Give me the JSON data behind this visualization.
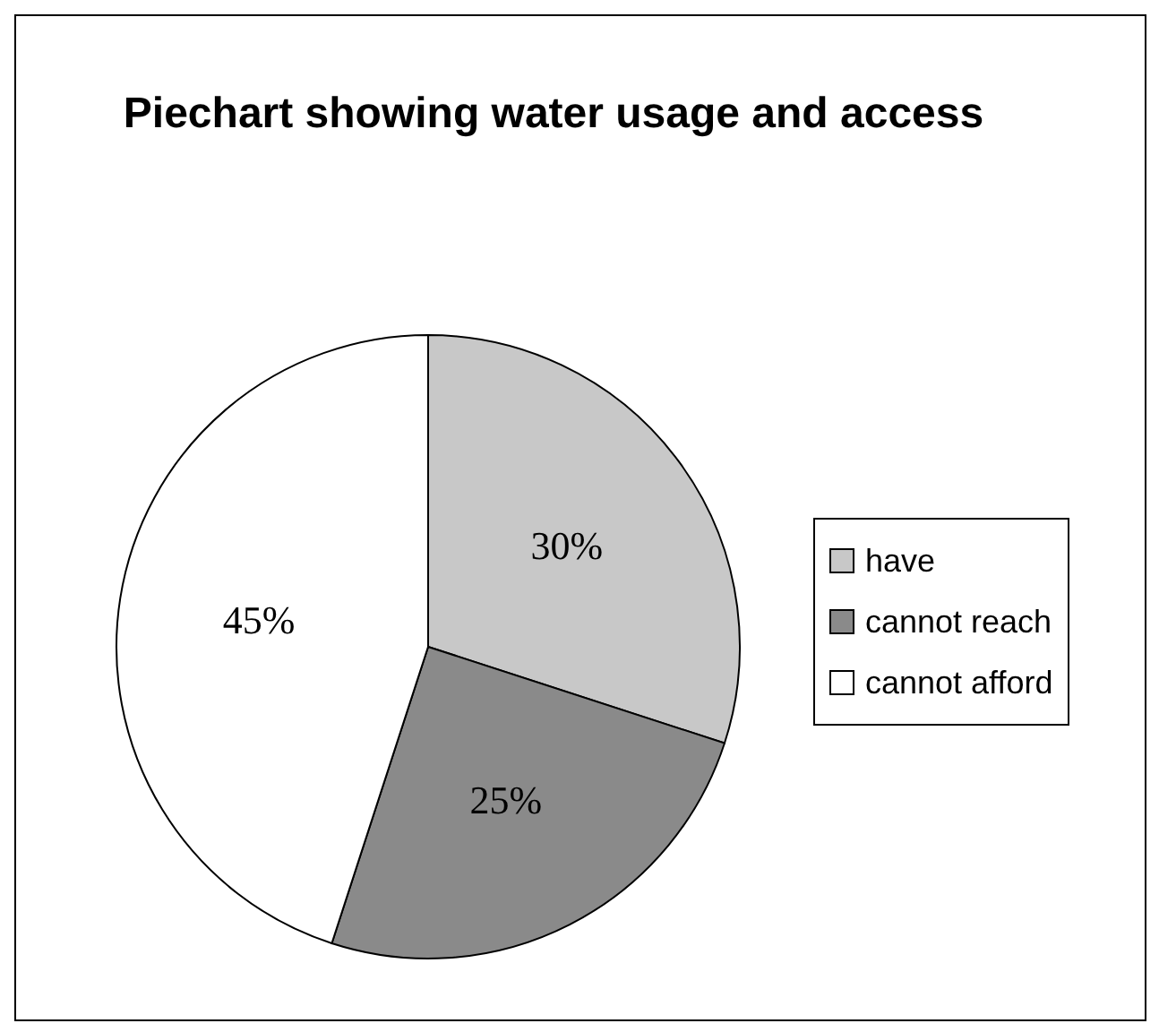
{
  "chart_data": {
    "type": "pie",
    "title": "Piechart showing water usage and access",
    "categories": [
      "have",
      "cannot reach",
      "cannot afford"
    ],
    "values": [
      30,
      25,
      45
    ],
    "colors": [
      "#c8c8c8",
      "#8a8a8a",
      "#ffffff"
    ],
    "value_labels": [
      "30%",
      "25%",
      "45%"
    ],
    "legend": "right"
  }
}
